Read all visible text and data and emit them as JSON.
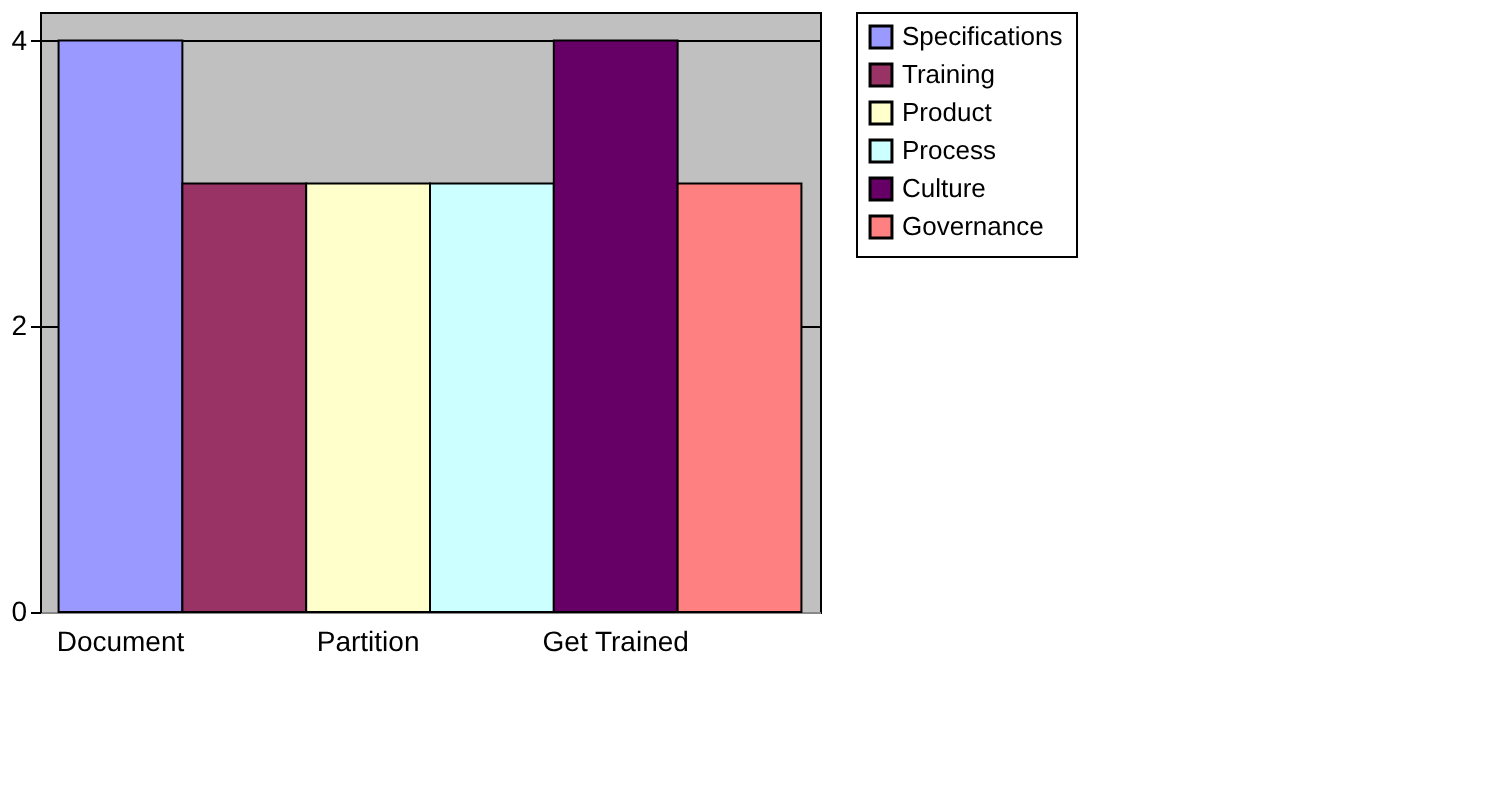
{
  "chart_data": {
    "type": "bar",
    "categories": [
      "Document",
      null,
      "Partition",
      null,
      "Get Trained",
      null
    ],
    "series": [
      {
        "name": "Specifications",
        "color": "#9999ff",
        "values": [
          4,
          null,
          null,
          null,
          null,
          null
        ]
      },
      {
        "name": "Training",
        "color": "#993366",
        "values": [
          null,
          3,
          null,
          null,
          null,
          null
        ]
      },
      {
        "name": "Product",
        "color": "#ffffcc",
        "values": [
          null,
          null,
          3,
          null,
          null,
          null
        ]
      },
      {
        "name": "Process",
        "color": "#ccffff",
        "values": [
          null,
          null,
          null,
          3,
          null,
          null
        ]
      },
      {
        "name": "Culture",
        "color": "#660066",
        "values": [
          null,
          null,
          null,
          null,
          4,
          null
        ]
      },
      {
        "name": "Governance",
        "color": "#ff8080",
        "values": [
          null,
          null,
          null,
          null,
          null,
          3
        ]
      }
    ],
    "ylim": [
      0,
      4.2
    ],
    "yticks": [
      0,
      2,
      4
    ],
    "grid": "y",
    "legend": "top right"
  }
}
